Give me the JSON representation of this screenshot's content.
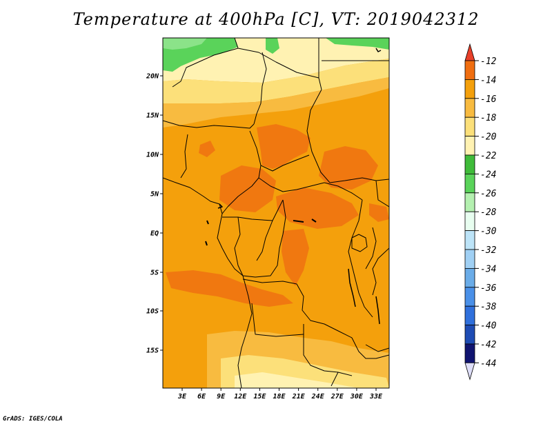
{
  "title": "Temperature at 400hPa [C], VT: 2019042312",
  "credit": "GrADS: IGES/COLA",
  "map": {
    "lat_labels": [
      "20N",
      "15N",
      "10N",
      "5N",
      "EQ",
      "5S",
      "10S",
      "15S"
    ],
    "lon_labels": [
      "3E",
      "6E",
      "9E",
      "12E",
      "15E",
      "18E",
      "21E",
      "24E",
      "27E",
      "30E",
      "33E"
    ]
  },
  "colorbar": {
    "labels": [
      "-12",
      "-14",
      "-16",
      "-18",
      "-20",
      "-22",
      "-24",
      "-26",
      "-28",
      "-30",
      "-32",
      "-34",
      "-36",
      "-38",
      "-40",
      "-42",
      "-44"
    ],
    "colors": [
      "#e8402a",
      "#f06e10",
      "#f4a00c",
      "#f8bb40",
      "#fce07a",
      "#fff2b2",
      "#3fbb3a",
      "#5ad35a",
      "#b4f0b0",
      "#e8fef0",
      "#bde4f8",
      "#a0d0f4",
      "#6aace8",
      "#4a90e8",
      "#3070dc",
      "#1e4cb4",
      "#101470",
      "#dedef8"
    ]
  },
  "palette": {
    "orange_dark": "#f07810",
    "orange": "#f4a00c",
    "orange_light": "#f8bb40",
    "yellow": "#fce07a",
    "cream": "#fff2b2",
    "green": "#5ad35a",
    "green_dark": "#3fbb3a"
  }
}
